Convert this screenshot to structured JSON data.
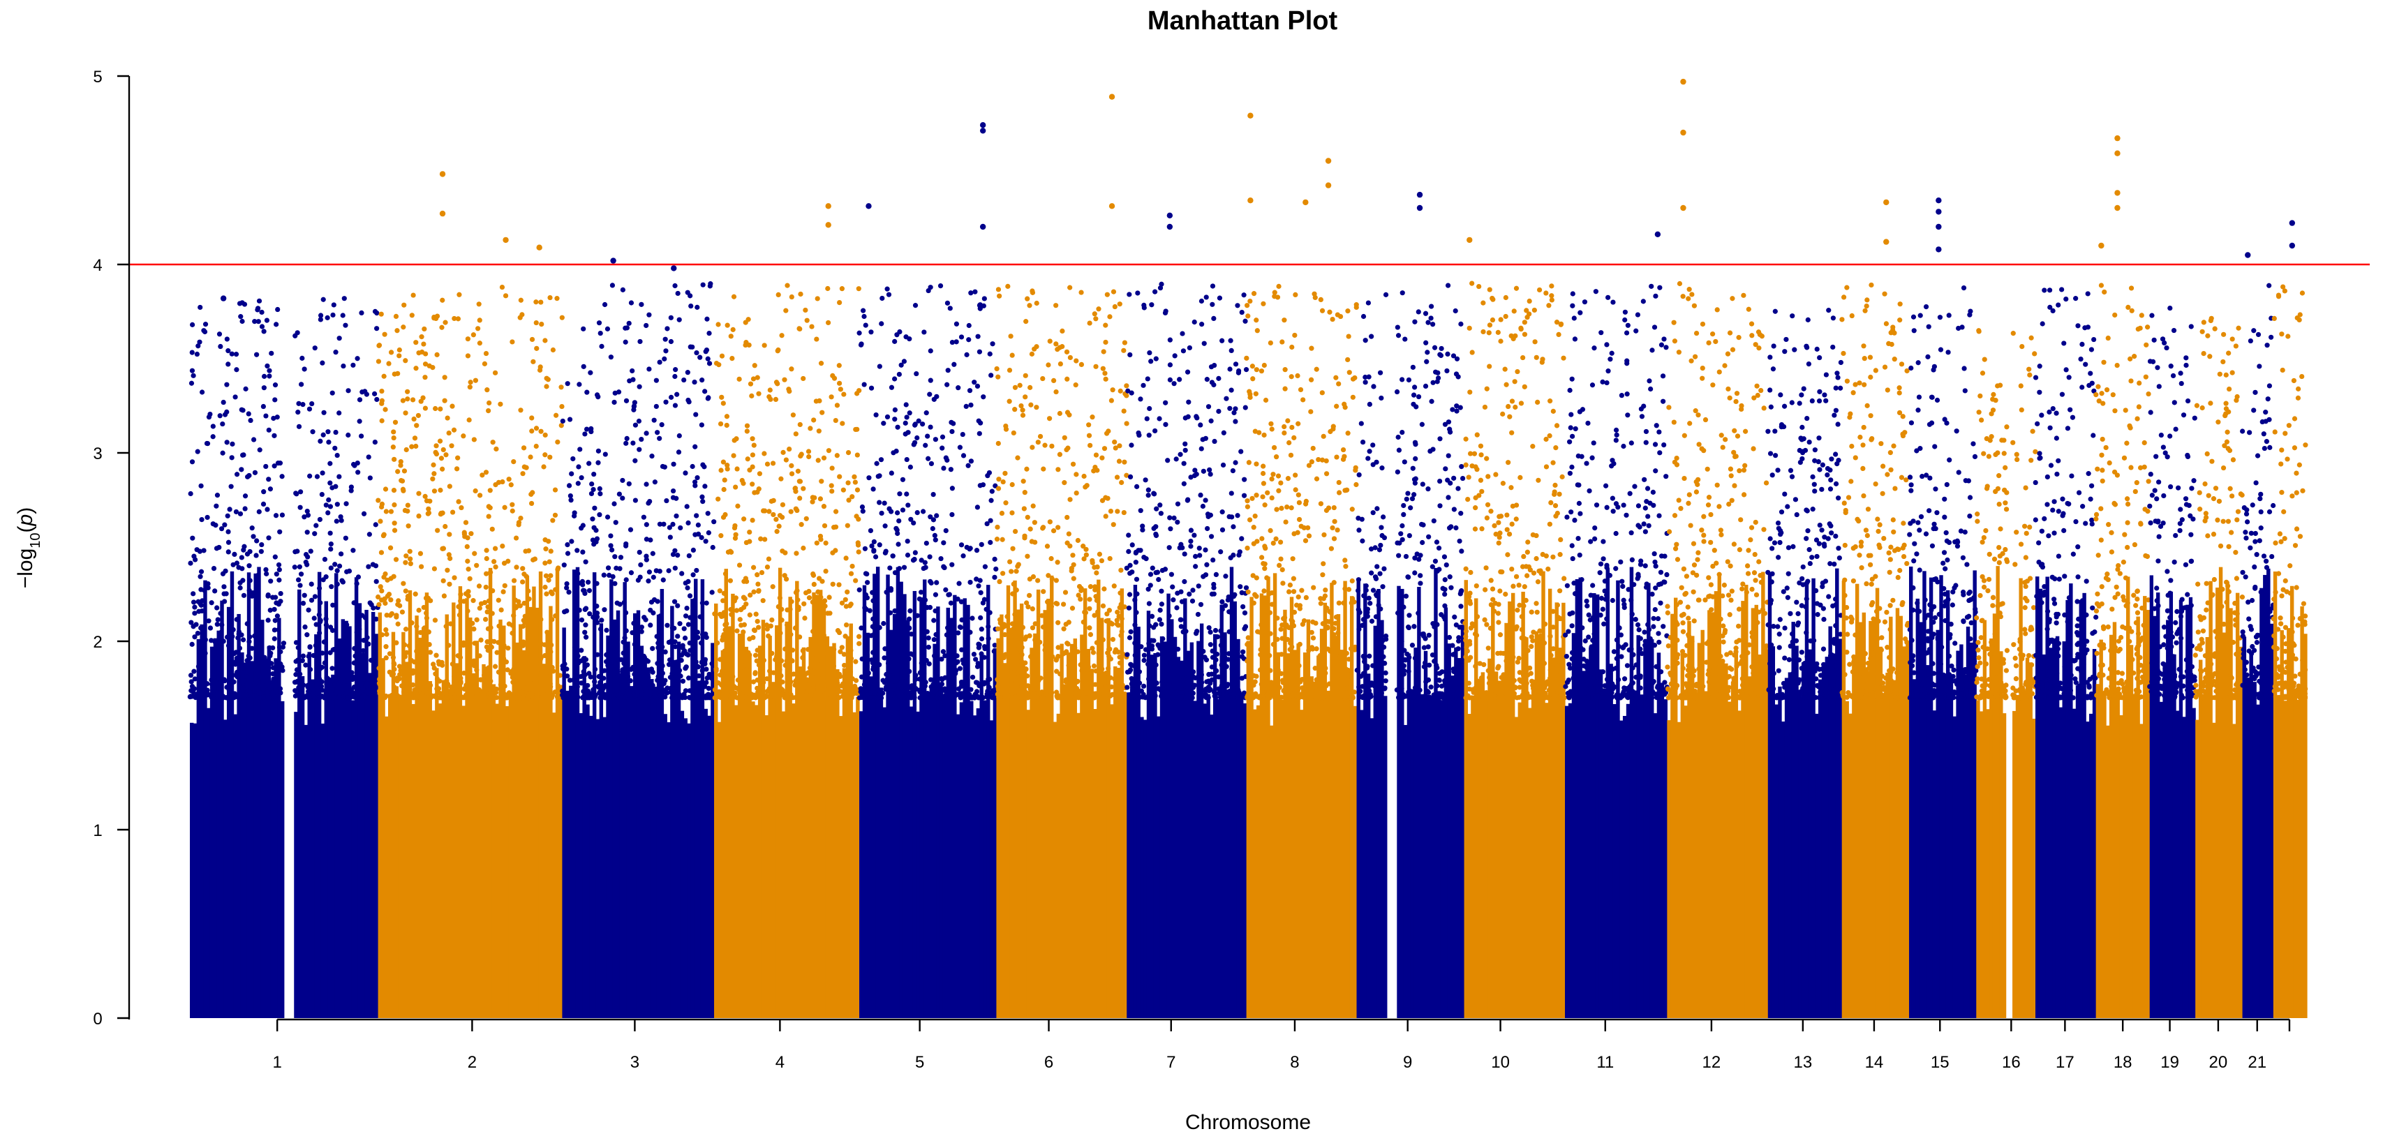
{
  "chart_data": {
    "type": "scatter",
    "subtype": "manhattan",
    "title": "Manhattan Plot",
    "xlabel": "Chromosome",
    "ylabel": "-log10(p)",
    "ylim": [
      0,
      5
    ],
    "y_ticks": [
      "0",
      "1",
      "2",
      "3",
      "4",
      "5"
    ],
    "grid": false,
    "legend": "none",
    "colors": [
      "#00008B",
      "#E38A00"
    ],
    "threshold": {
      "value": 4,
      "color": "#FF0000"
    },
    "chromosomes": [
      {
        "label": "1",
        "start": 0.0,
        "end": 14.0,
        "color": "#00008B",
        "peak": 3.82
      },
      {
        "label": "2",
        "start": 14.0,
        "end": 27.7,
        "color": "#E38A00",
        "peak": 4.48
      },
      {
        "label": "3",
        "start": 27.7,
        "end": 39.0,
        "color": "#00008B",
        "peak": 4.02
      },
      {
        "label": "4",
        "start": 39.0,
        "end": 49.8,
        "color": "#E38A00",
        "peak": 4.31
      },
      {
        "label": "5",
        "start": 49.8,
        "end": 60.0,
        "color": "#00008B",
        "peak": 4.74
      },
      {
        "label": "6",
        "start": 60.0,
        "end": 69.7,
        "color": "#E38A00",
        "peak": 4.89
      },
      {
        "label": "7",
        "start": 69.7,
        "end": 78.6,
        "color": "#00008B",
        "peak": 4.26
      },
      {
        "label": "8",
        "start": 78.6,
        "end": 86.8,
        "color": "#E38A00",
        "peak": 4.79
      },
      {
        "label": "9",
        "start": 86.8,
        "end": 94.8,
        "color": "#00008B",
        "peak": 4.37
      },
      {
        "label": "10",
        "start": 94.8,
        "end": 102.3,
        "color": "#E38A00",
        "peak": 4.13
      },
      {
        "label": "11",
        "start": 102.3,
        "end": 109.9,
        "color": "#00008B",
        "peak": 4.16
      },
      {
        "label": "12",
        "start": 109.9,
        "end": 117.4,
        "color": "#E38A00",
        "peak": 4.97
      },
      {
        "label": "13",
        "start": 117.4,
        "end": 122.9,
        "color": "#00008B",
        "peak": 3.76
      },
      {
        "label": "14",
        "start": 122.9,
        "end": 127.9,
        "color": "#E38A00",
        "peak": 4.33
      },
      {
        "label": "15",
        "start": 127.9,
        "end": 132.9,
        "color": "#00008B",
        "peak": 4.34
      },
      {
        "label": "16",
        "start": 132.9,
        "end": 137.3,
        "color": "#E38A00",
        "peak": 3.65
      },
      {
        "label": "17",
        "start": 137.3,
        "end": 141.8,
        "color": "#00008B",
        "peak": 3.89
      },
      {
        "label": "18",
        "start": 141.8,
        "end": 145.8,
        "color": "#E38A00",
        "peak": 4.67
      },
      {
        "label": "19",
        "start": 145.8,
        "end": 149.2,
        "color": "#00008B",
        "peak": 3.82
      },
      {
        "label": "20",
        "start": 149.2,
        "end": 152.7,
        "color": "#E38A00",
        "peak": 3.8
      },
      {
        "label": "21",
        "start": 152.7,
        "end": 155.0,
        "color": "#00008B",
        "peak": 4.05
      },
      {
        "label": "",
        "start": 155.0,
        "end": 157.5,
        "color": "#E38A00",
        "peak": 4.22
      }
    ],
    "x_ticks": [
      {
        "label": "1",
        "x": 6.5
      },
      {
        "label": "2",
        "x": 21.0
      },
      {
        "label": "3",
        "x": 33.1
      },
      {
        "label": "4",
        "x": 43.9
      },
      {
        "label": "5",
        "x": 54.3
      },
      {
        "label": "6",
        "x": 63.9
      },
      {
        "label": "7",
        "x": 73.0
      },
      {
        "label": "8",
        "x": 82.2
      },
      {
        "label": "9",
        "x": 90.6
      },
      {
        "label": "10",
        "x": 97.5
      },
      {
        "label": "11",
        "x": 105.3
      },
      {
        "label": "12",
        "x": 113.2
      },
      {
        "label": "13",
        "x": 120.0
      },
      {
        "label": "14",
        "x": 125.3
      },
      {
        "label": "15",
        "x": 130.2
      },
      {
        "label": "16",
        "x": 135.5
      },
      {
        "label": "17",
        "x": 139.5
      },
      {
        "label": "18",
        "x": 143.8
      },
      {
        "label": "19",
        "x": 147.3
      },
      {
        "label": "20",
        "x": 150.9
      },
      {
        "label": "21",
        "x": 153.8
      },
      {
        "label": "",
        "x": 156.2
      }
    ],
    "gaps": [
      {
        "start": 7.0,
        "end": 7.8
      },
      {
        "start": 89.0,
        "end": 89.8
      },
      {
        "start": 135.2,
        "end": 135.6
      }
    ],
    "notable_points": [
      {
        "chr": "1",
        "x": 2.5,
        "y": 3.82
      },
      {
        "chr": "2",
        "x": 18.8,
        "y": 4.48
      },
      {
        "chr": "2",
        "x": 18.8,
        "y": 4.27
      },
      {
        "chr": "2",
        "x": 23.5,
        "y": 4.13
      },
      {
        "chr": "2",
        "x": 26.0,
        "y": 4.09
      },
      {
        "chr": "3",
        "x": 31.5,
        "y": 4.02
      },
      {
        "chr": "3",
        "x": 36.0,
        "y": 3.98
      },
      {
        "chr": "4",
        "x": 47.5,
        "y": 4.31
      },
      {
        "chr": "4",
        "x": 47.5,
        "y": 4.21
      },
      {
        "chr": "5",
        "x": 50.5,
        "y": 4.31
      },
      {
        "chr": "5",
        "x": 59.0,
        "y": 4.74
      },
      {
        "chr": "5",
        "x": 59.0,
        "y": 4.71
      },
      {
        "chr": "5",
        "x": 59.0,
        "y": 4.2
      },
      {
        "chr": "6",
        "x": 68.6,
        "y": 4.89
      },
      {
        "chr": "6",
        "x": 68.6,
        "y": 4.31
      },
      {
        "chr": "7",
        "x": 72.9,
        "y": 4.26
      },
      {
        "chr": "7",
        "x": 72.9,
        "y": 4.2
      },
      {
        "chr": "8",
        "x": 78.9,
        "y": 4.79
      },
      {
        "chr": "8",
        "x": 78.9,
        "y": 4.34
      },
      {
        "chr": "8",
        "x": 83.0,
        "y": 4.33
      },
      {
        "chr": "8",
        "x": 84.7,
        "y": 4.55
      },
      {
        "chr": "8",
        "x": 84.7,
        "y": 4.42
      },
      {
        "chr": "9",
        "x": 91.5,
        "y": 4.37
      },
      {
        "chr": "9",
        "x": 91.5,
        "y": 4.3
      },
      {
        "chr": "10",
        "x": 95.2,
        "y": 4.13
      },
      {
        "chr": "11",
        "x": 109.2,
        "y": 4.16
      },
      {
        "chr": "12",
        "x": 111.1,
        "y": 4.97
      },
      {
        "chr": "12",
        "x": 111.1,
        "y": 4.7
      },
      {
        "chr": "12",
        "x": 111.1,
        "y": 4.3
      },
      {
        "chr": "14",
        "x": 126.2,
        "y": 4.33
      },
      {
        "chr": "14",
        "x": 126.2,
        "y": 4.12
      },
      {
        "chr": "15",
        "x": 130.1,
        "y": 4.34
      },
      {
        "chr": "15",
        "x": 130.1,
        "y": 4.28
      },
      {
        "chr": "15",
        "x": 130.1,
        "y": 4.2
      },
      {
        "chr": "15",
        "x": 130.1,
        "y": 4.08
      },
      {
        "chr": "18",
        "x": 143.4,
        "y": 4.67
      },
      {
        "chr": "18",
        "x": 143.4,
        "y": 4.59
      },
      {
        "chr": "18",
        "x": 143.4,
        "y": 4.38
      },
      {
        "chr": "18",
        "x": 143.4,
        "y": 4.3
      },
      {
        "chr": "18",
        "x": 142.2,
        "y": 4.1
      },
      {
        "chr": "21",
        "x": 153.1,
        "y": 4.05
      },
      {
        "chr": "21",
        "x": 156.4,
        "y": 4.22
      },
      {
        "chr": "21",
        "x": 156.4,
        "y": 4.1
      }
    ]
  }
}
